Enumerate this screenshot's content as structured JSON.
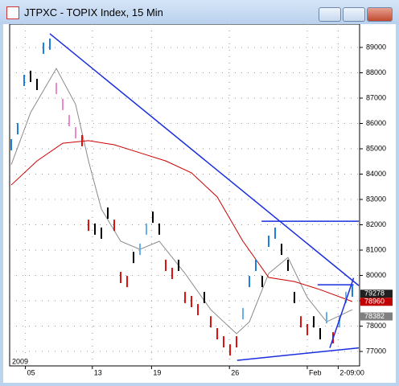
{
  "window_title": "JTPXC - TOPIX Index, 15 Min",
  "chart_data": {
    "type": "ohlc",
    "year_label": "2009",
    "xlim": [
      0,
      54
    ],
    "ylim": [
      76430,
      89920
    ],
    "yticks": [
      77000,
      78000,
      79000,
      80000,
      81000,
      82000,
      83000,
      84000,
      85000,
      86000,
      87000,
      88000,
      89000
    ],
    "xticks": [
      {
        "value": 2.2,
        "label": "05"
      },
      {
        "value": 12.6,
        "label": "13"
      },
      {
        "value": 21.8,
        "label": "19"
      },
      {
        "value": 33.9,
        "label": "26"
      },
      {
        "value": 46,
        "label": "Feb"
      },
      {
        "value": 50.8,
        "label": "2-09:00"
      }
    ],
    "grid": true,
    "price": {
      "values": [
        85160,
        85790,
        87700,
        87860,
        87540,
        88970,
        89130,
        87380,
        86750,
        86110,
        85630,
        85320,
        81980,
        81830,
        81670,
        82460,
        81980,
        79920,
        79760,
        80710,
        81030,
        81830,
        82300,
        81830,
        80400,
        80080,
        80400,
        79130,
        78970,
        78650,
        79130,
        78170,
        77700,
        77380,
        77060,
        77380,
        78490,
        79760,
        80400,
        79760,
        81350,
        81670,
        81030,
        80400,
        79130,
        78170,
        77860,
        78170,
        77700,
        78330,
        77540,
        78170,
        79130,
        79380
      ],
      "colors": [
        "#1e7fe0",
        "#1e7fe0",
        "#1e7fe0",
        "#000000",
        "#000000",
        "#1e7fe0",
        "#1e7fe0",
        "#ee88cc",
        "#ee88cc",
        "#ee88cc",
        "#ee88cc",
        "#e01010",
        "#e01010",
        "#000000",
        "#000000",
        "#000000",
        "#e01010",
        "#e01010",
        "#e01010",
        "#000000",
        "#66b0ee",
        "#66b0ee",
        "#000000",
        "#000000",
        "#e01010",
        "#e01010",
        "#000000",
        "#e01010",
        "#e01010",
        "#e01010",
        "#000000",
        "#e01010",
        "#e01010",
        "#e01010",
        "#e01010",
        "#e01010",
        "#66b0ee",
        "#1e7fe0",
        "#1e7fe0",
        "#000000",
        "#1e7fe0",
        "#1e7fe0",
        "#000000",
        "#000000",
        "#000000",
        "#e01010",
        "#e01010",
        "#000000",
        "#000000",
        "#66b0ee",
        "#e01010",
        "#66b0ee",
        "#66b0ee",
        "#1e7fe0"
      ]
    },
    "series": [
      {
        "color": "#8a8a8a",
        "x": [
          0,
          3,
          7,
          10,
          12,
          14,
          17,
          20,
          23,
          27,
          31,
          35,
          37,
          40,
          43,
          46,
          49,
          53
        ],
        "values": [
          84370,
          86430,
          88170,
          86750,
          84520,
          82620,
          81350,
          81030,
          81350,
          80080,
          78650,
          77700,
          78170,
          80080,
          80710,
          79130,
          78170,
          78650
        ]
      },
      {
        "color": "#cc0000",
        "x": [
          0,
          4,
          8,
          12,
          16,
          20,
          24,
          28,
          32,
          36,
          40,
          44,
          48,
          53
        ],
        "values": [
          83570,
          84520,
          85220,
          85320,
          85160,
          84840,
          84520,
          84050,
          83100,
          81350,
          79920,
          79760,
          79440,
          78970
        ]
      }
    ],
    "trend_lines": [
      {
        "color": "#1a2ee0",
        "x": [
          6,
          54
        ],
        "values": [
          89540,
          79600
        ]
      },
      {
        "color": "#1a2ee0",
        "x": [
          38.9,
          54
        ],
        "values": [
          82140,
          82140
        ]
      },
      {
        "color": "#1a2ee0",
        "x": [
          47.6,
          53.2
        ],
        "values": [
          79630,
          79630
        ]
      },
      {
        "color": "#1a2ee0",
        "x": [
          35.1,
          54
        ],
        "values": [
          76650,
          77140
        ]
      },
      {
        "color": "#1a2ee0",
        "x": [
          49.5,
          53.2
        ],
        "values": [
          77140,
          79900
        ]
      }
    ],
    "price_labels": [
      {
        "value": 79278,
        "color": "#202020"
      },
      {
        "value": 78960,
        "color": "#c00000"
      },
      {
        "value": 78382,
        "color": "#808080"
      }
    ]
  }
}
